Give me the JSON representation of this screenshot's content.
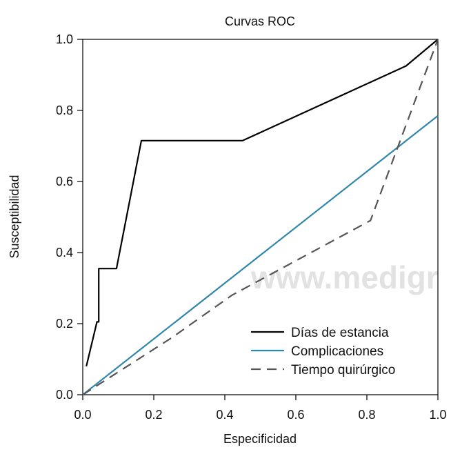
{
  "chart_data": {
    "type": "line",
    "title": "Curvas ROC",
    "xlabel": "Especificidad",
    "ylabel": "Susceptibilidad",
    "xlim": [
      0,
      1
    ],
    "ylim": [
      0,
      1
    ],
    "xticks": [
      "0.0",
      "0.2",
      "0.4",
      "0.6",
      "0.8",
      "1.0"
    ],
    "yticks": [
      "0.0",
      "0.2",
      "0.4",
      "0.6",
      "0.8",
      "1.0"
    ],
    "grid": false,
    "legend_position": "bottom-right",
    "watermark": "www.medigr",
    "series": [
      {
        "name": "Días de estancia",
        "color": "#000000",
        "dash": "solid",
        "x": [
          0.01,
          0.04,
          0.045,
          0.045,
          0.095,
          0.165,
          0.45,
          0.91,
          1.0
        ],
        "y": [
          0.08,
          0.205,
          0.205,
          0.355,
          0.355,
          0.715,
          0.715,
          0.925,
          1.0
        ]
      },
      {
        "name": "Complicaciones",
        "color": "#2e86ab",
        "dash": "solid",
        "x": [
          0.0,
          1.0
        ],
        "y": [
          0.0,
          0.785
        ]
      },
      {
        "name": "Tiempo quirúrgico",
        "color": "#555555",
        "dash": "dashed",
        "x": [
          0.0,
          0.25,
          0.42,
          0.81,
          1.0
        ],
        "y": [
          0.0,
          0.16,
          0.28,
          0.49,
          1.0
        ]
      }
    ]
  }
}
